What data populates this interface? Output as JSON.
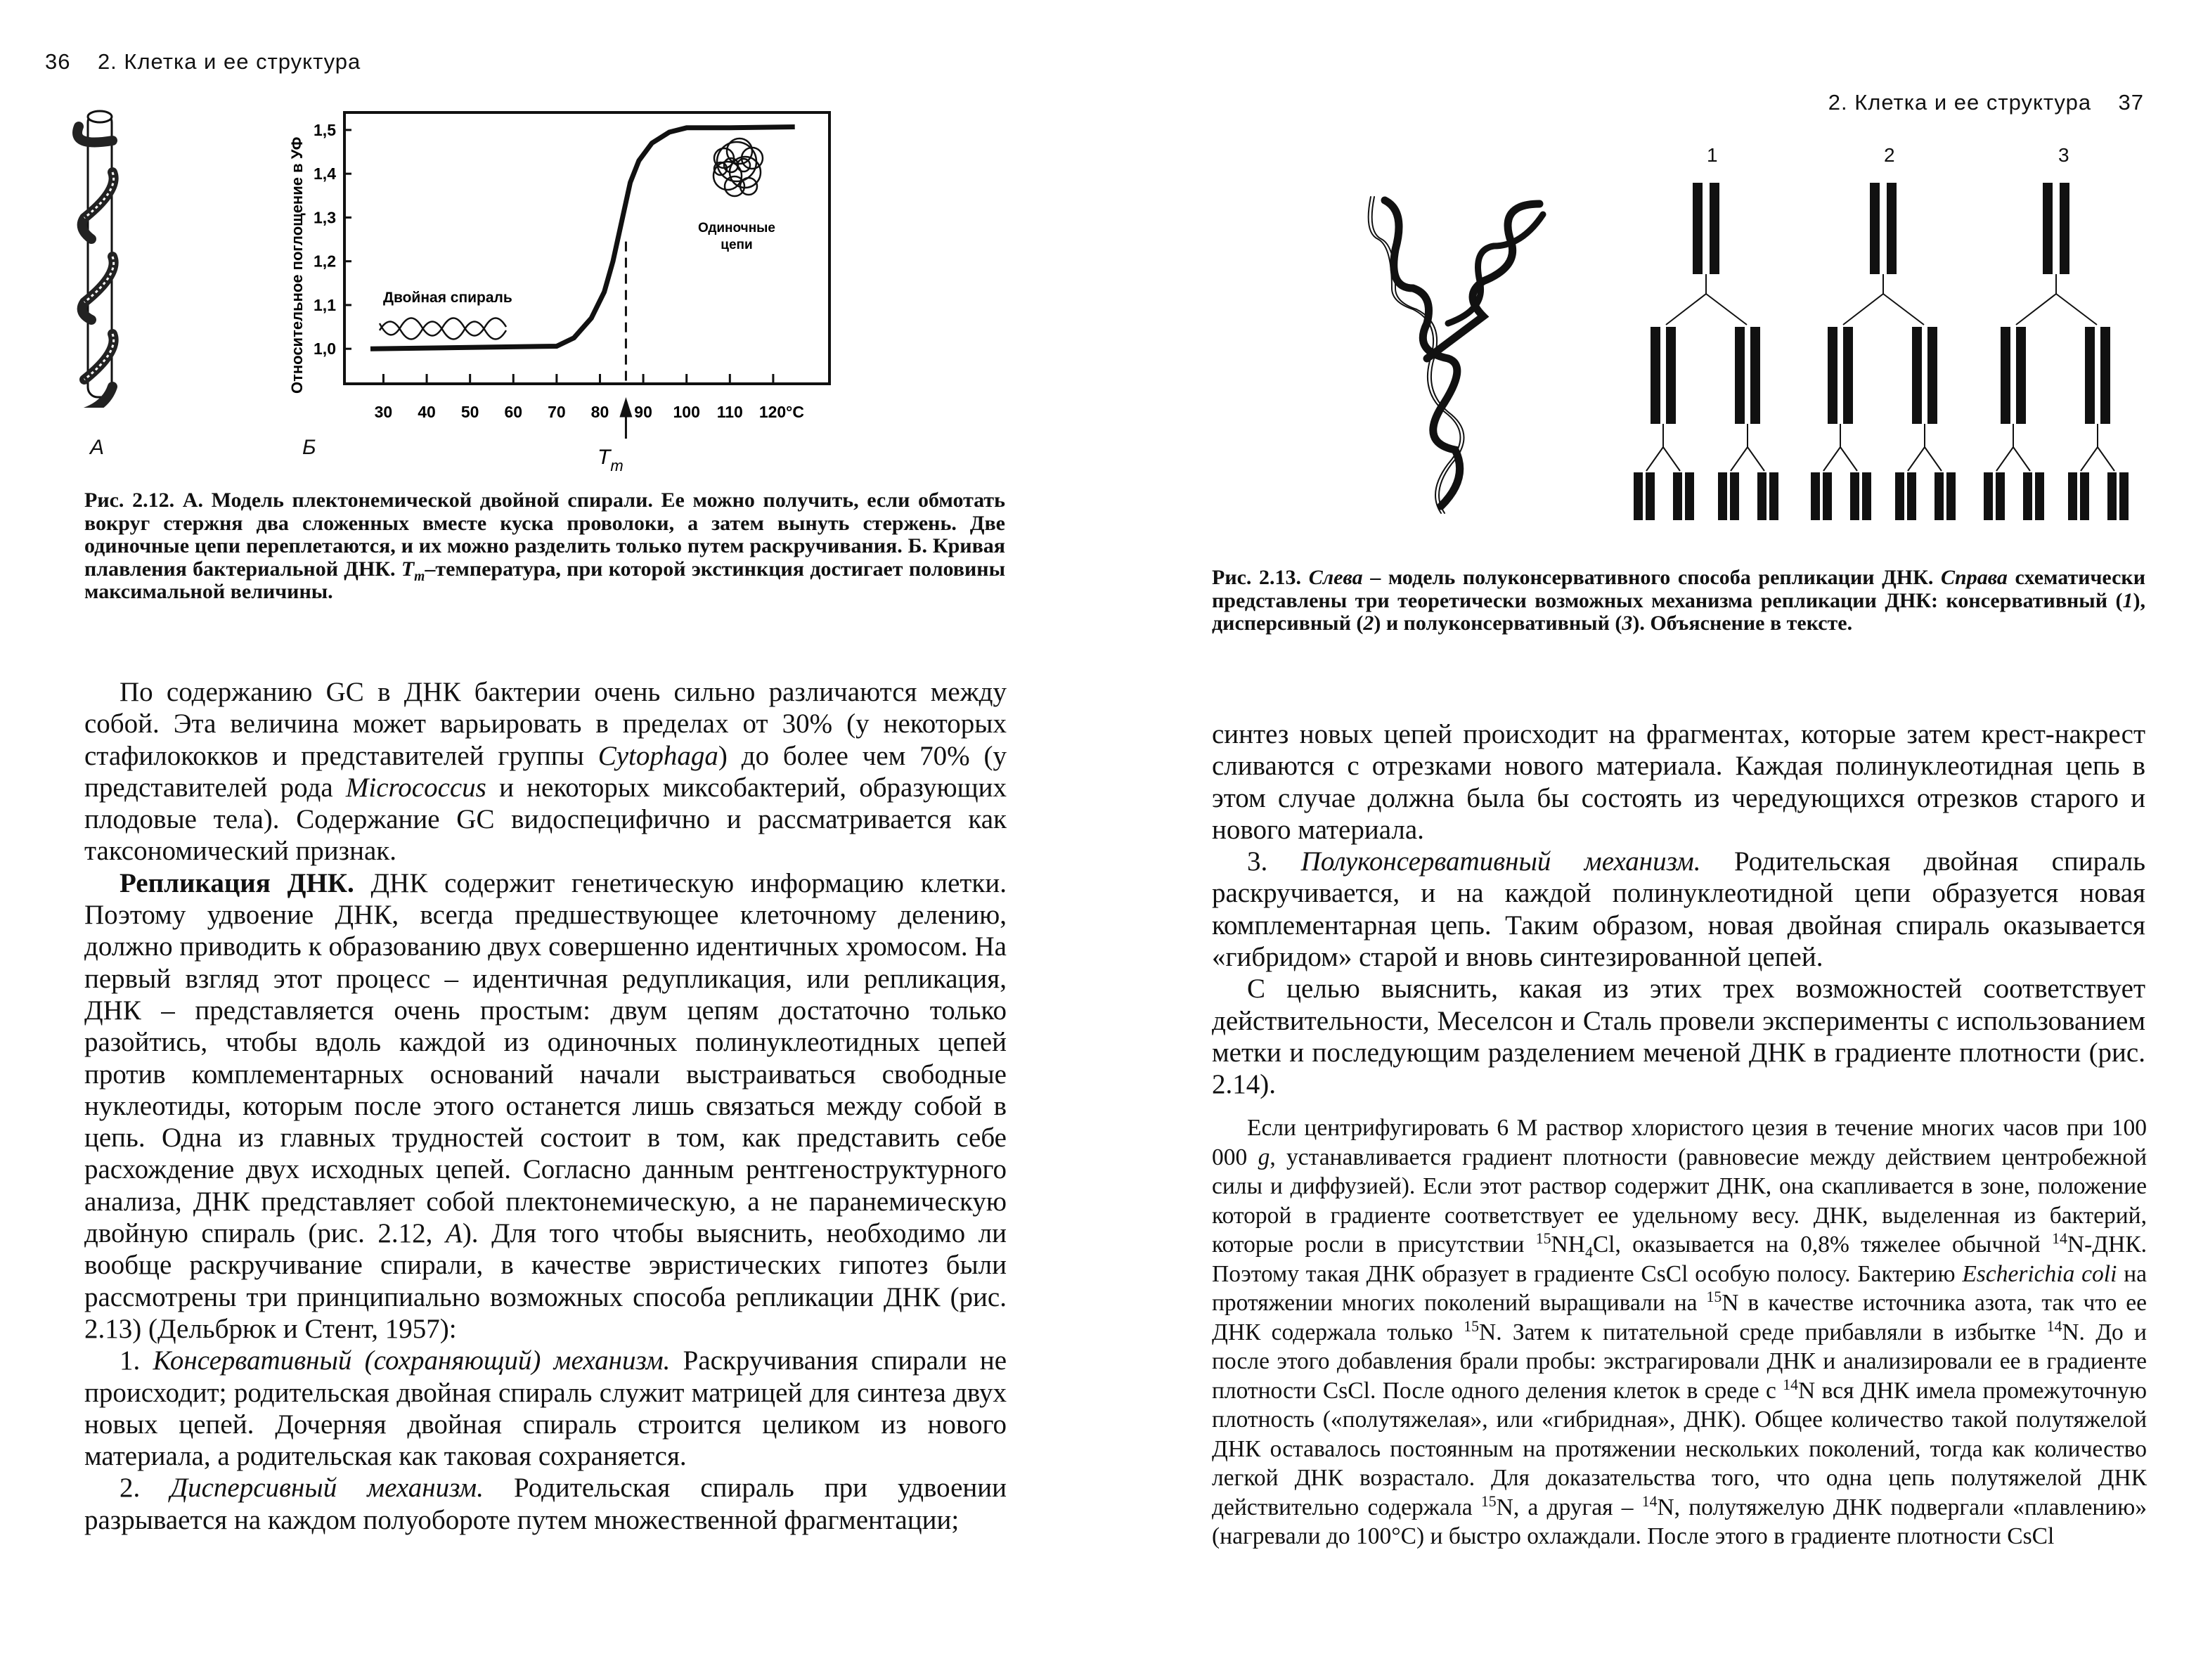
{
  "left_page": {
    "page_number": "36",
    "running_head": "2. Клетка и ее структура",
    "figure": {
      "panel_a_label": "А",
      "panel_b_label": "Б",
      "chart": {
        "y_axis_label": "Относительное поглощение в УФ",
        "y_ticks": [
          "1,0",
          "1,1",
          "1,2",
          "1,3",
          "1,4",
          "1,5"
        ],
        "x_ticks": [
          "30",
          "40",
          "50",
          "60",
          "70",
          "80",
          "90",
          "100",
          "110",
          "120°C"
        ],
        "annotation_double_helix": "Двойная спираль",
        "annotation_single_strands_line1": "Одиночные",
        "annotation_single_strands_line2": "цепи",
        "tm_label": "T",
        "tm_sub": "m"
      }
    },
    "caption": [
      {
        "t": "Рис. 2.12. А.",
        "s": "b"
      },
      {
        "t": " Модель плектонемической двойной спирали. Ее можно получить, если обмотать вокруг стержня два сложенных вместе куска проволоки, а затем вынуть стержень. Две одиночные цепи переплетаются, и их можно разделить только путем раскручивания. "
      },
      {
        "t": "Б.",
        "s": "b"
      },
      {
        "t": " Кривая плавления бактериальной ДНК. "
      },
      {
        "t": "T",
        "s": "i"
      },
      {
        "t": "m",
        "s": "isub"
      },
      {
        "t": "–температура, при которой экстинкция достигает половины максимальной величины."
      }
    ],
    "paragraphs": [
      [
        {
          "t": "По содержанию GC в ДНК бактерии очень сильно различаются между собой. Эта величина может варьировать в пределах от 30% (у некоторых стафилококков и представителей группы "
        },
        {
          "t": "Cytophaga",
          "s": "i"
        },
        {
          "t": ") до более чем 70% (у представителей рода "
        },
        {
          "t": "Micrococcus",
          "s": "i"
        },
        {
          "t": " и некоторых миксобактерий, образующих плодовые тела). Содержание GC видоспецифично и рассматривается как таксономический признак."
        }
      ],
      [
        {
          "t": "Репликация ДНК.",
          "s": "b"
        },
        {
          "t": " ДНК содержит генетическую информацию клетки. Поэтому удвоение ДНК, всегда предшествующее клеточному делению, должно приводить к образованию двух совершенно идентичных хромосом. На первый взгляд этот процесс – идентичная редупликация, или репликация, ДНК – представляется очень простым: двум цепям достаточно только разойтись, чтобы вдоль каждой из одиночных полинуклеотидных цепей против комплементарных оснований начали выстраиваться свободные нуклеотиды, которым после этого останется лишь связаться между собой в цепь. Одна из главных трудностей состоит в том, как представить себе расхождение двух исходных цепей. Согласно данным рентгеноструктурного анализа, ДНК представляет собой плектонемическую, а не паранемическую двойную спираль (рис. 2.12, "
        },
        {
          "t": "А",
          "s": "i"
        },
        {
          "t": "). Для того чтобы выяснить, необходимо ли вообще раскручивание спирали, в качестве эвристических гипотез были рассмотрены три принципиально возможных способа репликации ДНК (рис. 2.13) (Дельбрюк и Стент, 1957):"
        }
      ],
      [
        {
          "t": "1. "
        },
        {
          "t": "Консервативный (сохраняющий) механизм.",
          "s": "i"
        },
        {
          "t": " Раскручивания спирали не происходит; родительская двойная спираль служит матрицей для синтеза двух новых цепей. Дочерняя двойная спираль строится целиком из нового материала, а родительская как таковая сохраняется."
        }
      ],
      [
        {
          "t": "2. "
        },
        {
          "t": "Дисперсивный механизм.",
          "s": "i"
        },
        {
          "t": " Родительская спираль при удвоении разрывается на каждом полуобороте путем множественной фрагментации;"
        }
      ]
    ]
  },
  "right_page": {
    "page_number": "37",
    "running_head": "2. Клетка и ее структура",
    "figure": {
      "scheme_labels": [
        "1",
        "2",
        "3"
      ]
    },
    "caption": [
      {
        "t": "Рис. 2.13.",
        "s": "b"
      },
      {
        "t": " "
      },
      {
        "t": "Слева",
        "s": "i"
      },
      {
        "t": " – модель полуконсервативного способа репликации ДНК. "
      },
      {
        "t": "Справа",
        "s": "i"
      },
      {
        "t": " схематически представлены три теоретически возможных механизма репликации ДНК: консервативный ("
      },
      {
        "t": "1",
        "s": "i"
      },
      {
        "t": "), дисперсивный ("
      },
      {
        "t": "2",
        "s": "i"
      },
      {
        "t": ") и полуконсервативный ("
      },
      {
        "t": "3",
        "s": "i"
      },
      {
        "t": "). Объяснение в тексте."
      }
    ],
    "paragraphs": [
      [
        {
          "t": "синтез новых цепей происходит на фрагментах, которые затем крест-накрест сливаются с отрезками нового материала. Каждая полинуклеотидная цепь в этом случае должна была бы состоять из чередующихся отрезков старого и нового материала."
        }
      ],
      [
        {
          "t": "3. "
        },
        {
          "t": "Полуконсервативный механизм.",
          "s": "i"
        },
        {
          "t": " Родительская двойная спираль раскручивается, и на каждой полинуклеотидной цепи образуется новая комплементарная цепь. Таким образом, новая двойная спираль оказывается «гибридом» старой и вновь синтезированной цепей."
        }
      ],
      [
        {
          "t": "С целью выяснить, какая из этих трех возможностей соответствует действительности, Меселсон и Сталь провели эксперименты с использованием метки и последующим разделением меченой ДНК в градиенте плотности (рис. 2.14)."
        }
      ]
    ],
    "small_print": [
      {
        "t": "Если центрифугировать 6 М раствор хлористого цезия в течение многих часов при 100 000 "
      },
      {
        "t": "g",
        "s": "i"
      },
      {
        "t": ", устанавливается градиент плотности (равновесие между действием центробежной силы и диффузией). Если этот раствор содержит ДНК, она скапливается в зоне, положение которой в градиенте соответствует ее удельному весу. ДНК, выделенная из бактерий, которые росли в присутствии "
      },
      {
        "t": "15",
        "s": "sup"
      },
      {
        "t": "NH"
      },
      {
        "t": "4",
        "s": "sub"
      },
      {
        "t": "Cl, оказывается на 0,8% тяжелее обычной "
      },
      {
        "t": "14",
        "s": "sup"
      },
      {
        "t": "N-ДНК. Поэтому такая ДНК образует в градиенте CsCl особую полосу. Бактерию "
      },
      {
        "t": "Escherichia coli",
        "s": "i"
      },
      {
        "t": " на протяжении многих поколений выращивали на "
      },
      {
        "t": "15",
        "s": "sup"
      },
      {
        "t": "N в качестве источника азота, так что ее ДНК содержала только "
      },
      {
        "t": "15",
        "s": "sup"
      },
      {
        "t": "N. Затем к питательной среде прибавляли в избытке "
      },
      {
        "t": "14",
        "s": "sup"
      },
      {
        "t": "N. До и после этого добавления брали пробы: экстрагировали ДНК и анализировали ее в градиенте плотности CsCl. После одного деления клеток в среде с "
      },
      {
        "t": "14",
        "s": "sup"
      },
      {
        "t": "N вся ДНК имела промежуточную плотность («полутяжелая», или «гибридная», ДНК). Общее количество такой полутяжелой ДНК оставалось постоянным на протяжении нескольких поколений, тогда как количество легкой ДНК возрастало. Для доказательства того, что одна цепь полутяжелой ДНК действительно содержала "
      },
      {
        "t": "15",
        "s": "sup"
      },
      {
        "t": "N, а другая – "
      },
      {
        "t": "14",
        "s": "sup"
      },
      {
        "t": "N, полутяжелую ДНК подвергали «плавлению» (нагревали до 100°C) и быстро охлаждали. После этого в градиенте плотности CsCl"
      }
    ]
  },
  "chart_data": {
    "type": "line",
    "title": "",
    "xlabel": "",
    "ylabel": "Относительное поглощение в УФ",
    "x_unit": "°C",
    "xlim": [
      21,
      133
    ],
    "ylim": [
      0.92,
      1.54
    ],
    "x_ticks": [
      30,
      40,
      50,
      60,
      70,
      80,
      90,
      100,
      110,
      120
    ],
    "y_ticks": [
      1.0,
      1.1,
      1.2,
      1.3,
      1.4,
      1.5
    ],
    "grid": false,
    "series": [
      {
        "x": [
          27,
          50,
          70,
          74,
          78,
          81,
          83,
          85,
          87,
          89,
          92,
          96,
          100,
          110,
          125
        ],
        "y": [
          1.0,
          1.003,
          1.006,
          1.025,
          1.07,
          1.13,
          1.2,
          1.29,
          1.38,
          1.43,
          1.47,
          1.495,
          1.505,
          1.505,
          1.507
        ]
      }
    ],
    "tm": 86,
    "line_color": "#111111"
  }
}
